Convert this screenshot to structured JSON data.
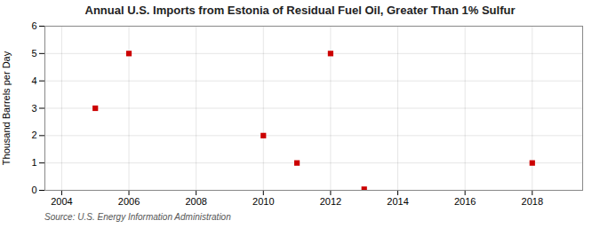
{
  "chart_data": {
    "type": "scatter",
    "title": "Annual U.S. Imports from Estonia of Residual Fuel Oil, Greater Than 1% Sulfur",
    "ylabel": "Thousand Barrels per Day",
    "annotations": [
      "Source: U.S. Energy Information Administration"
    ],
    "x": [
      2005,
      2006,
      2010,
      2011,
      2012,
      2013,
      2018
    ],
    "values": [
      3,
      5,
      2,
      1,
      5,
      0.04,
      1
    ],
    "color": "#cc0000",
    "marker": "square",
    "xlim": [
      2003.5,
      2019.5
    ],
    "ylim": [
      0,
      6
    ],
    "xticks": [
      2004,
      2006,
      2008,
      2010,
      2012,
      2014,
      2016,
      2018
    ],
    "yticks": [
      0,
      1,
      2,
      3,
      4,
      5,
      6
    ],
    "grid": true
  }
}
